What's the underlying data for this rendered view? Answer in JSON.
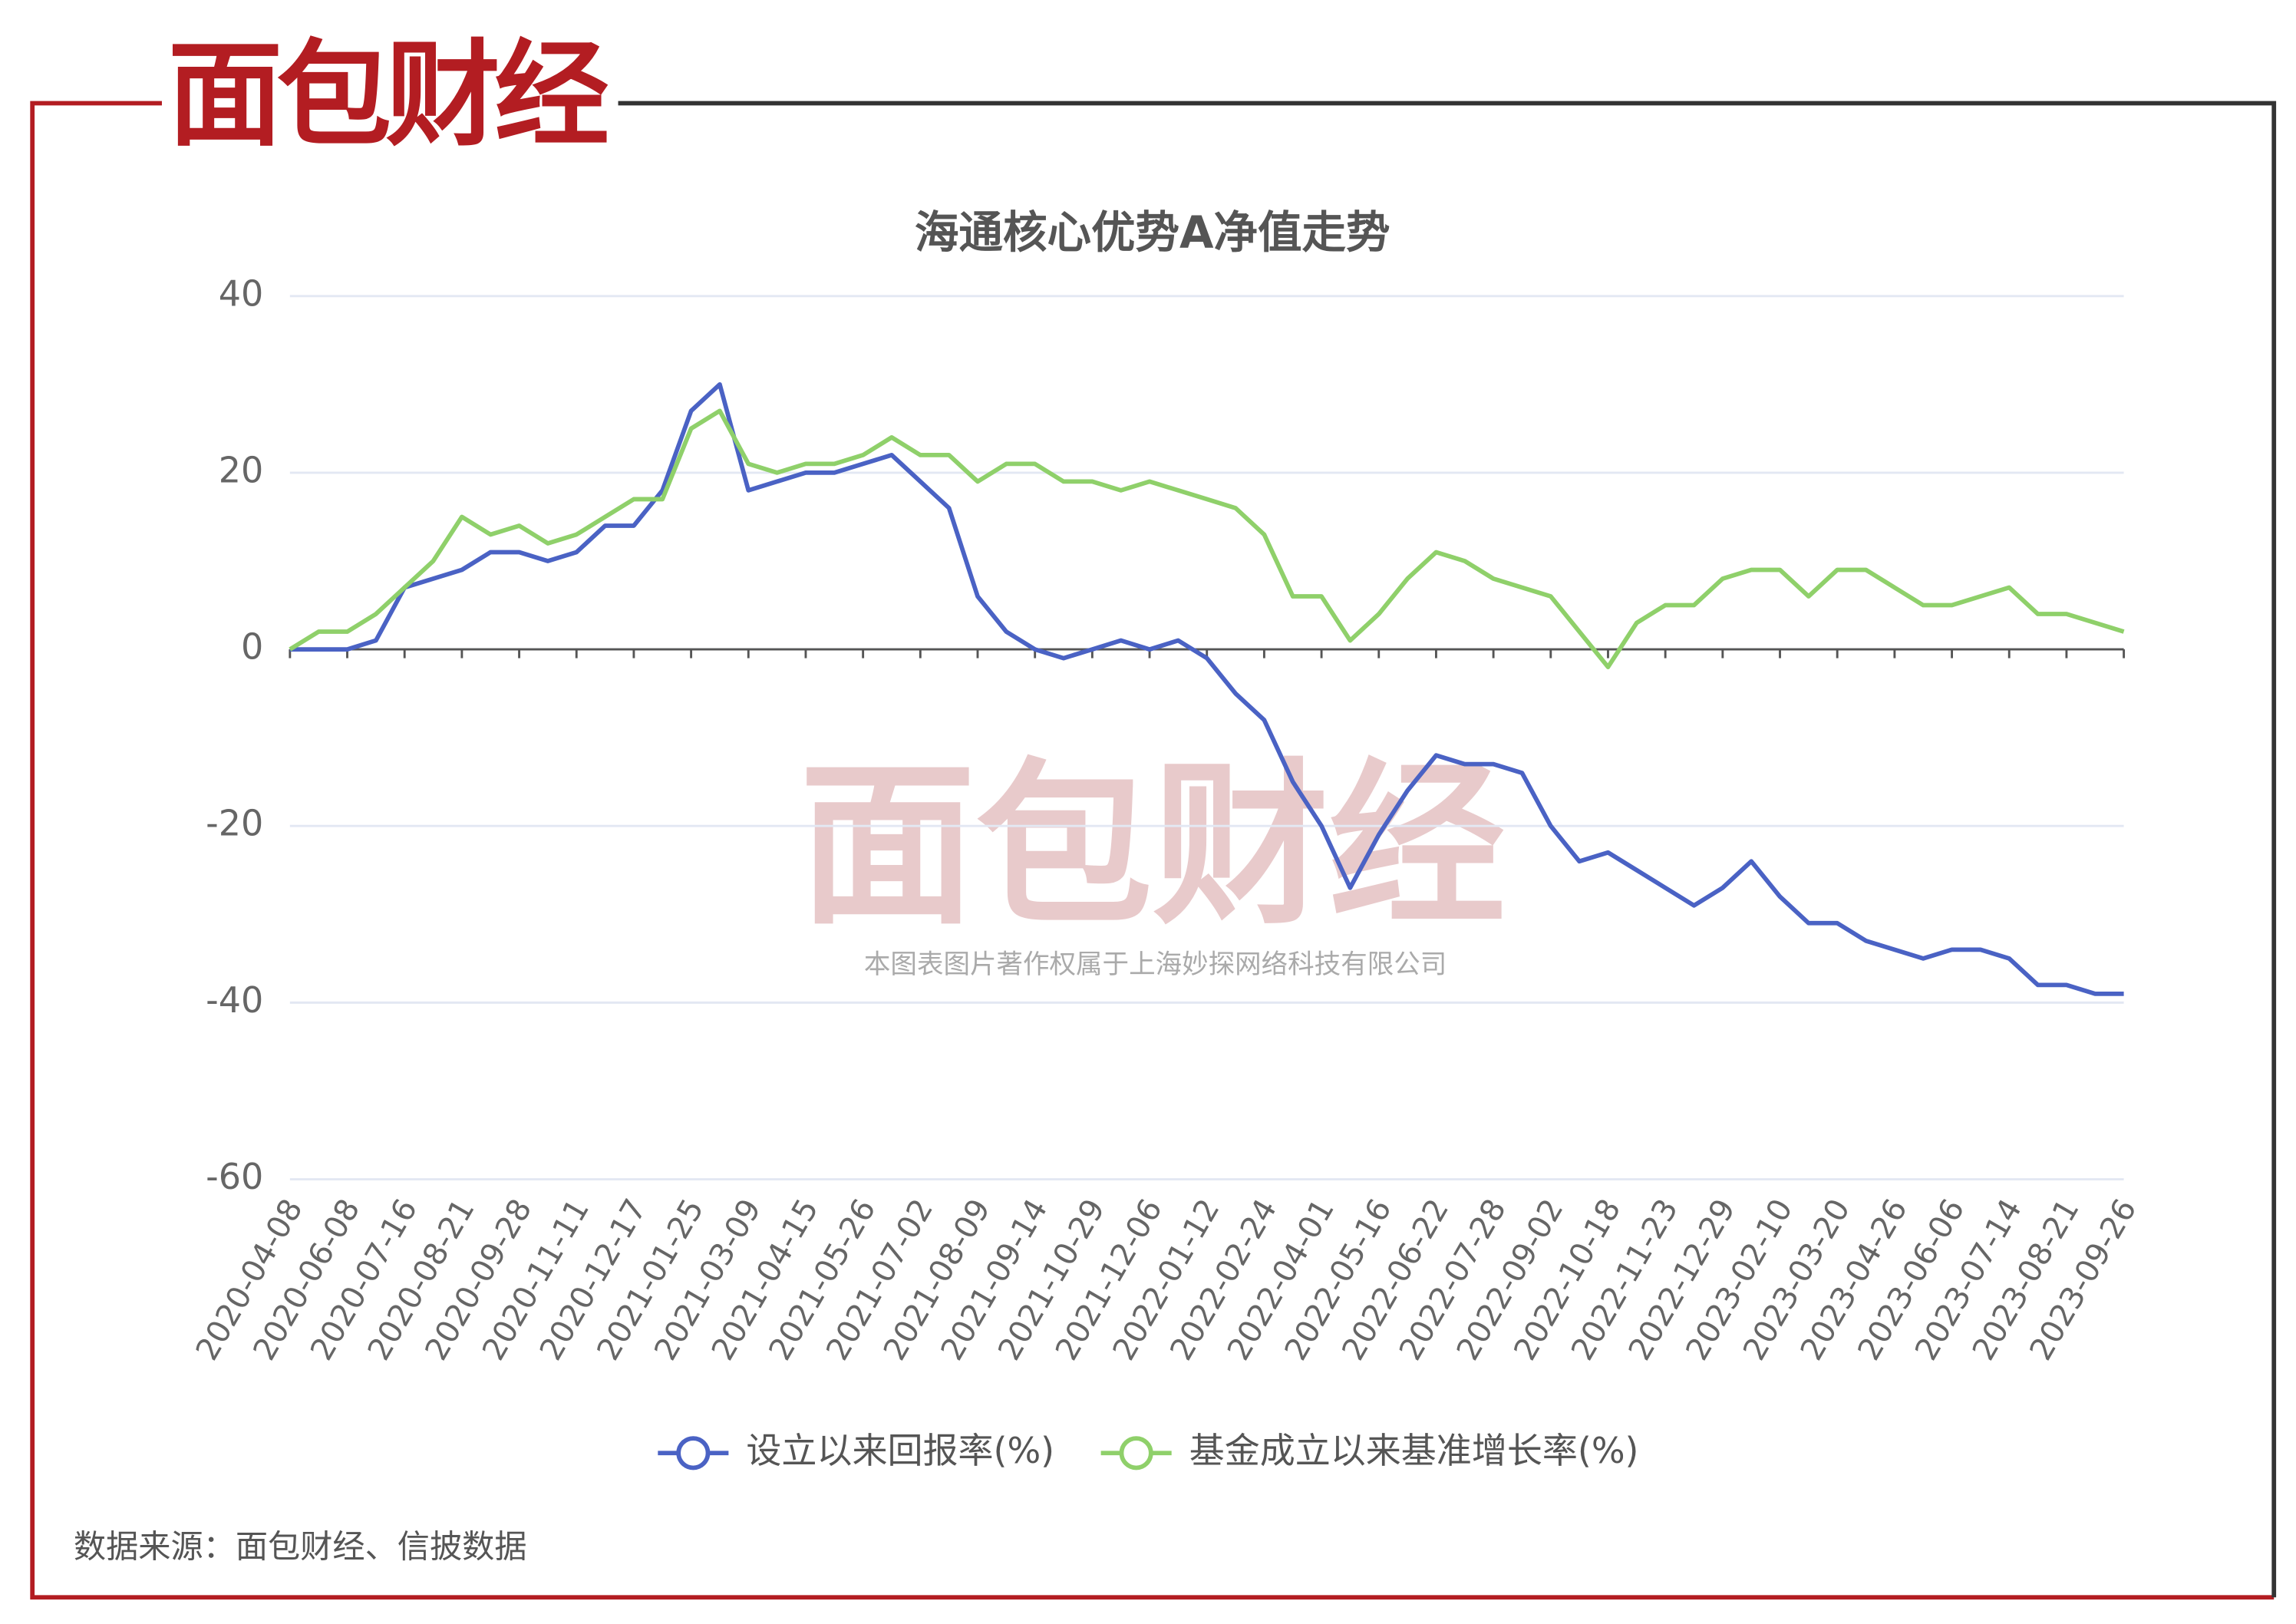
{
  "logo": "面包财经",
  "watermark": "面包财经",
  "watermark_note": "本图表图片著作权属于上海妙探网络科技有限公司",
  "source": "数据来源：面包财经、信披数据",
  "chart_data": {
    "type": "line",
    "title": "海通核心优势A净值走势",
    "categories": [
      "2020-04-08",
      null,
      "2020-06-08",
      null,
      "2020-07-16",
      null,
      "2020-08-21",
      null,
      "2020-09-28",
      null,
      "2020-11-11",
      null,
      "2020-12-17",
      null,
      "2021-01-25",
      null,
      "2021-03-09",
      null,
      "2021-04-15",
      null,
      "2021-05-26",
      null,
      "2021-07-02",
      null,
      "2021-08-09",
      null,
      "2021-09-14",
      null,
      "2021-10-29",
      null,
      "2021-12-06",
      null,
      "2022-01-12",
      null,
      "2022-02-24",
      null,
      "2022-04-01",
      null,
      "2022-05-16",
      null,
      "2022-06-22",
      null,
      "2022-07-28",
      null,
      "2022-09-02",
      null,
      "2022-10-18",
      null,
      "2022-11-23",
      null,
      "2022-12-29",
      null,
      "2023-02-10",
      null,
      "2023-03-20",
      null,
      "2023-04-26",
      null,
      "2023-06-06",
      null,
      "2023-07-14",
      null,
      "2023-08-21",
      null,
      "2023-09-26"
    ],
    "series": [
      {
        "name": "设立以来回报率(%)",
        "color": "#4a62c4",
        "values": [
          0,
          0,
          0,
          1,
          7,
          8,
          9,
          11,
          11,
          10,
          11,
          14,
          14,
          18,
          27,
          30,
          18,
          19,
          20,
          20,
          21,
          22,
          19,
          16,
          6,
          2,
          0,
          -1,
          0,
          1,
          0,
          1,
          -1,
          -5,
          -8,
          -15,
          -20,
          -27,
          -21,
          -16,
          -12,
          -13,
          -13,
          -14,
          -20,
          -24,
          -23,
          -25,
          -27,
          -29,
          -27,
          -24,
          -28,
          -31,
          -31,
          -33,
          -34,
          -35,
          -34,
          -34,
          -35,
          -38,
          -38,
          -39,
          -39
        ]
      },
      {
        "name": "基金成立以来基准增长率(%)",
        "color": "#8fd06a",
        "values": [
          0,
          2,
          2,
          4,
          7,
          10,
          15,
          13,
          14,
          12,
          13,
          15,
          17,
          17,
          25,
          27,
          21,
          20,
          21,
          21,
          22,
          24,
          22,
          22,
          19,
          21,
          21,
          19,
          19,
          18,
          19,
          18,
          17,
          16,
          13,
          6,
          6,
          1,
          4,
          8,
          11,
          10,
          8,
          7,
          6,
          2,
          -2,
          3,
          5,
          5,
          8,
          9,
          9,
          6,
          9,
          9,
          7,
          5,
          5,
          6,
          7,
          4,
          4,
          3,
          2
        ]
      }
    ],
    "ylim": [
      -60,
      40
    ],
    "yticks": [
      40,
      20,
      0,
      -20,
      -40,
      -60
    ],
    "grid": true
  }
}
